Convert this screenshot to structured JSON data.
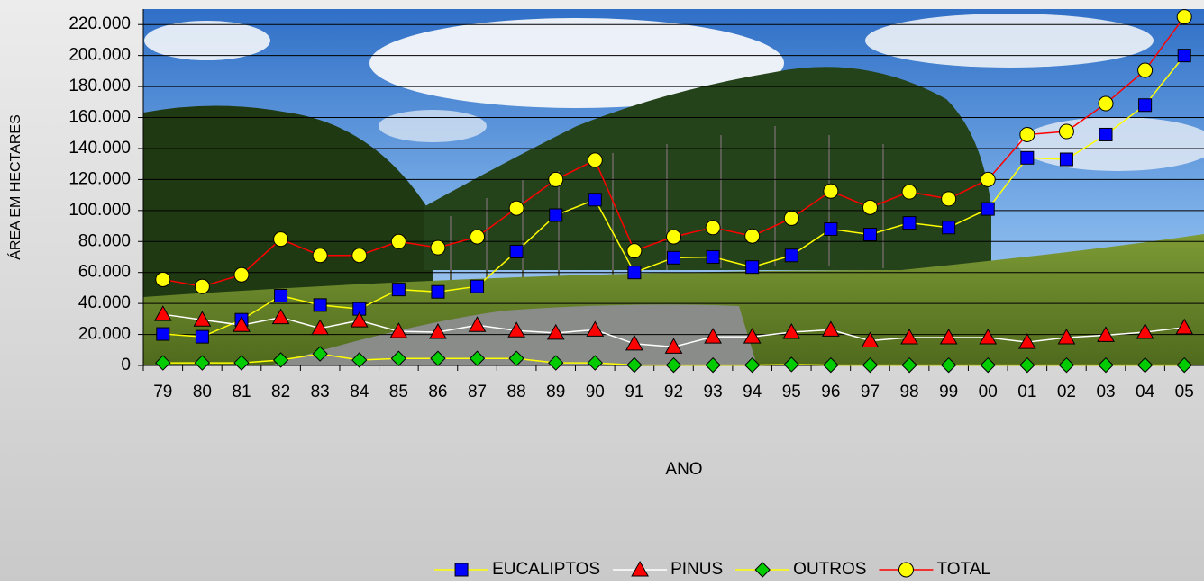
{
  "chart_data": {
    "type": "line",
    "x_label": "ANO",
    "y_label": "ÁREA EM HECTARES",
    "categories": [
      "79",
      "80",
      "81",
      "82",
      "83",
      "84",
      "85",
      "86",
      "87",
      "88",
      "89",
      "90",
      "91",
      "92",
      "93",
      "94",
      "95",
      "96",
      "97",
      "98",
      "99",
      "00",
      "01",
      "02",
      "03",
      "04",
      "05"
    ],
    "ylim": [
      0,
      230000
    ],
    "yticks": [
      0,
      {
        "value": 20000,
        "label": "20.000"
      },
      {
        "value": 40000,
        "label": "40.000"
      },
      {
        "value": 60000,
        "label": "60.000"
      },
      {
        "value": 80000,
        "label": "80.000"
      },
      {
        "value": 100000,
        "label": "100.000"
      },
      {
        "value": 120000,
        "label": "120.000"
      },
      {
        "value": 140000,
        "label": "140.000"
      },
      {
        "value": 160000,
        "label": "160.000"
      },
      {
        "value": 180000,
        "label": "180.000"
      },
      {
        "value": 200000,
        "label": "200.000"
      },
      {
        "value": 220000,
        "label": "220.000"
      }
    ],
    "grid": true,
    "legend": "bottom",
    "series": [
      {
        "name": "EUCALIPTOS",
        "color": "#ffff00",
        "marker": "square",
        "marker_color": "#0000ff",
        "values": [
          20300,
          18500,
          29500,
          45000,
          39000,
          36500,
          49000,
          47500,
          51000,
          73500,
          97000,
          107000,
          60000,
          69500,
          70000,
          63500,
          71000,
          88000,
          84500,
          92000,
          89000,
          101000,
          134000,
          133000,
          149000,
          168000,
          200000
        ]
      },
      {
        "name": "PINUS",
        "color": "#ffffff",
        "marker": "triangle",
        "marker_color": "#ff0000",
        "values": [
          33000,
          29500,
          26000,
          31000,
          24000,
          29000,
          22000,
          21500,
          26000,
          22500,
          21000,
          23000,
          14000,
          12000,
          18500,
          18500,
          21500,
          23000,
          16000,
          18000,
          18000,
          18000,
          15000,
          18000,
          19500,
          21500,
          24500
        ]
      },
      {
        "name": "OUTROS",
        "color": "#ffff00",
        "marker": "diamond",
        "marker_color": "#00cc00",
        "values": [
          1700,
          1700,
          1700,
          3500,
          7500,
          3500,
          4500,
          4500,
          4500,
          4500,
          1700,
          1700,
          300,
          200,
          200,
          200,
          600,
          200,
          200,
          200,
          200,
          200,
          200,
          200,
          200,
          200,
          200
        ]
      },
      {
        "name": "TOTAL",
        "color": "#ff0000",
        "marker": "circle",
        "marker_color": "#ffff00",
        "values": [
          55500,
          51000,
          58500,
          81500,
          71000,
          71000,
          80000,
          76000,
          83000,
          101500,
          120000,
          132500,
          74000,
          83000,
          89000,
          83500,
          95000,
          112500,
          102000,
          112000,
          107500,
          120000,
          149000,
          151000,
          169000,
          190500,
          225000
        ]
      }
    ]
  }
}
